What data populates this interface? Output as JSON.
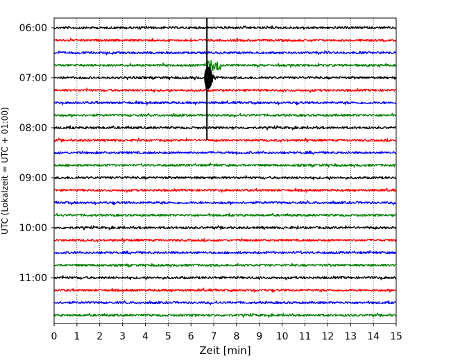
{
  "chart_data": {
    "type": "line",
    "chart_kind": "helicorder seismogram",
    "xlabel": "Zeit  [min]",
    "ylabel": "UTC (Lokalzeit = UTC + 01:00)",
    "xlim": [
      0,
      15
    ],
    "x_ticks": [
      0,
      1,
      2,
      3,
      4,
      5,
      6,
      7,
      8,
      9,
      10,
      11,
      12,
      13,
      14,
      15
    ],
    "y_tick_labels": [
      "06:00",
      "07:00",
      "08:00",
      "09:00",
      "10:00",
      "11:00"
    ],
    "trace_start_times": [
      "06:00",
      "06:15",
      "06:30",
      "06:45",
      "07:00",
      "07:15",
      "07:30",
      "07:45",
      "08:00",
      "08:15",
      "08:30",
      "08:45",
      "09:00",
      "09:15",
      "09:30",
      "09:45",
      "10:00",
      "10:15",
      "10:30",
      "10:45",
      "11:00",
      "11:15",
      "11:30",
      "11:45"
    ],
    "trace_colors": [
      "#000000",
      "#ff0000",
      "#0000ff",
      "#008000"
    ],
    "grid": "vertical dotted lines at every minute",
    "event": {
      "start_time": "06:45",
      "onset_minute": 6.7,
      "amplitude_peak_time": "07:00",
      "vertical_spike_range": [
        "06:00",
        "08:15"
      ]
    }
  }
}
